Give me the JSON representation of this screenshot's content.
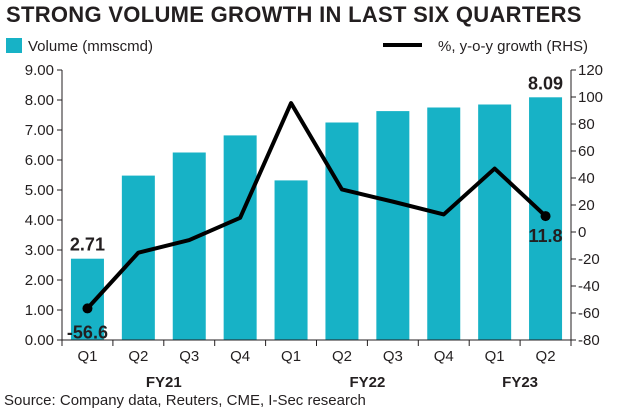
{
  "title": "STRONG VOLUME GROWTH IN LAST SIX QUARTERS",
  "source": "Source: Company data, Reuters, CME, I-Sec research",
  "colors": {
    "bar": "#17b2c6",
    "line": "#000000",
    "axis": "#231f20"
  },
  "chart_data": {
    "type": "bar",
    "categories": [
      "Q1",
      "Q2",
      "Q3",
      "Q4",
      "Q1",
      "Q2",
      "Q3",
      "Q4",
      "Q1",
      "Q2"
    ],
    "category_groups": [
      {
        "label": "FY21",
        "from": 0,
        "to": 3
      },
      {
        "label": "FY22",
        "from": 4,
        "to": 7
      },
      {
        "label": "FY23",
        "from": 8,
        "to": 9
      }
    ],
    "series": [
      {
        "name": "Volume (mmscmd)",
        "type": "bar",
        "axis": "left",
        "values": [
          2.71,
          5.48,
          6.25,
          6.82,
          5.32,
          7.25,
          7.63,
          7.75,
          7.85,
          8.09
        ]
      },
      {
        "name": "%, y-o-y growth (RHS)",
        "type": "line",
        "axis": "right",
        "values": [
          -56.6,
          -15.3,
          -6.0,
          10.5,
          95.5,
          31.5,
          22.5,
          13.0,
          47.0,
          11.8
        ]
      }
    ],
    "data_labels": [
      {
        "series": 0,
        "index": 0,
        "text": "2.71"
      },
      {
        "series": 0,
        "index": 9,
        "text": "8.09"
      },
      {
        "series": 1,
        "index": 0,
        "text": "-56.6"
      },
      {
        "series": 1,
        "index": 9,
        "text": "11.8"
      }
    ],
    "ylim_left": [
      0,
      9
    ],
    "yticks_left": [
      "0.00",
      "1.00",
      "2.00",
      "3.00",
      "4.00",
      "5.00",
      "6.00",
      "7.00",
      "8.00",
      "9.00"
    ],
    "ylim_right": [
      -80,
      120
    ],
    "yticks_right": [
      "-80",
      "-60",
      "-40",
      "-20",
      "0",
      "20",
      "40",
      "60",
      "80",
      "100",
      "120"
    ],
    "grid": false,
    "legend": "top"
  }
}
